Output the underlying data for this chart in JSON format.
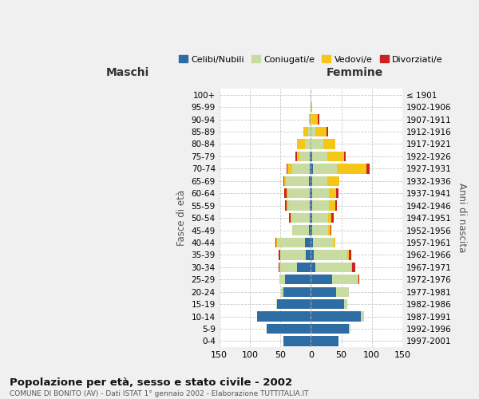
{
  "age_groups": [
    "0-4",
    "5-9",
    "10-14",
    "15-19",
    "20-24",
    "25-29",
    "30-34",
    "35-39",
    "40-44",
    "45-49",
    "50-54",
    "55-59",
    "60-64",
    "65-69",
    "70-74",
    "75-79",
    "80-84",
    "85-89",
    "90-94",
    "95-99",
    "100+"
  ],
  "birth_years": [
    "1997-2001",
    "1992-1996",
    "1987-1991",
    "1982-1986",
    "1977-1981",
    "1972-1976",
    "1967-1971",
    "1962-1966",
    "1957-1961",
    "1952-1956",
    "1947-1951",
    "1942-1946",
    "1937-1941",
    "1932-1936",
    "1927-1931",
    "1922-1926",
    "1917-1921",
    "1912-1916",
    "1907-1911",
    "1902-1906",
    "≤ 1901"
  ],
  "male": {
    "celibi": [
      45,
      72,
      88,
      55,
      45,
      42,
      22,
      8,
      10,
      3,
      2,
      2,
      2,
      3,
      2,
      2,
      0,
      0,
      0,
      0,
      0
    ],
    "coniugati": [
      0,
      0,
      0,
      1,
      4,
      10,
      28,
      42,
      45,
      27,
      30,
      35,
      35,
      38,
      28,
      17,
      10,
      4,
      1,
      0,
      0
    ],
    "vedovi": [
      0,
      0,
      0,
      0,
      0,
      0,
      2,
      0,
      2,
      0,
      1,
      2,
      3,
      2,
      8,
      4,
      12,
      8,
      2,
      0,
      0
    ],
    "divorziati": [
      0,
      0,
      0,
      0,
      0,
      0,
      1,
      3,
      1,
      0,
      3,
      3,
      3,
      2,
      2,
      2,
      0,
      0,
      0,
      0,
      0
    ]
  },
  "female": {
    "nubili": [
      45,
      62,
      82,
      55,
      42,
      35,
      8,
      5,
      3,
      2,
      2,
      2,
      2,
      2,
      3,
      2,
      0,
      0,
      0,
      0,
      0
    ],
    "coniugate": [
      0,
      3,
      5,
      5,
      20,
      42,
      58,
      55,
      35,
      27,
      27,
      28,
      28,
      25,
      40,
      25,
      20,
      8,
      2,
      0,
      0
    ],
    "vedove": [
      0,
      0,
      0,
      0,
      0,
      1,
      2,
      2,
      2,
      3,
      5,
      10,
      12,
      20,
      48,
      28,
      20,
      18,
      10,
      2,
      0
    ],
    "divorziate": [
      0,
      0,
      0,
      0,
      0,
      2,
      5,
      5,
      0,
      2,
      3,
      3,
      3,
      0,
      5,
      2,
      0,
      2,
      2,
      0,
      0
    ]
  },
  "colors": {
    "celibi_nubili": "#2e6da4",
    "coniugati": "#c8dba0",
    "vedovi": "#f5c518",
    "divorziati": "#cc2222"
  },
  "xlim": 150,
  "title": "Popolazione per età, sesso e stato civile - 2002",
  "subtitle": "COMUNE DI BONITO (AV) - Dati ISTAT 1° gennaio 2002 - Elaborazione TUTTITALIA.IT",
  "ylabel_left": "Fasce di età",
  "ylabel_right": "Anni di nascita",
  "xlabel_left": "Maschi",
  "xlabel_right": "Femmine",
  "bg_color": "#f0f0f0",
  "plot_bg": "#ffffff"
}
